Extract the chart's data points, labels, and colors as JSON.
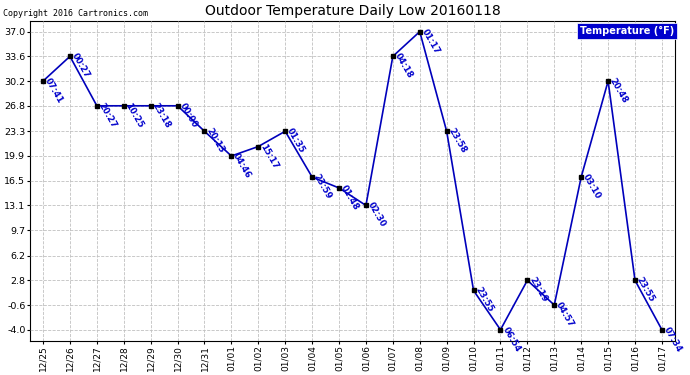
{
  "title": "Outdoor Temperature Daily Low 20160118",
  "copyright": "Copyright 2016 Cartronics.com",
  "legend_label": "Temperature (°F)",
  "x_labels": [
    "12/25",
    "12/26",
    "12/27",
    "12/28",
    "12/29",
    "12/30",
    "12/31",
    "01/01",
    "01/02",
    "01/03",
    "01/04",
    "01/05",
    "01/06",
    "01/07",
    "01/08",
    "01/09",
    "01/10",
    "01/11",
    "01/12",
    "01/13",
    "01/14",
    "01/15",
    "01/16",
    "01/17"
  ],
  "y_values": [
    30.2,
    33.6,
    26.8,
    26.8,
    26.8,
    26.8,
    23.3,
    19.9,
    21.2,
    23.3,
    17.0,
    15.5,
    13.1,
    33.6,
    37.0,
    23.3,
    1.4,
    -4.0,
    2.8,
    -0.6,
    17.0,
    30.2,
    2.8,
    -4.0
  ],
  "time_labels": [
    "07:41",
    "00:27",
    "20:27",
    "10:25",
    "23:18",
    "00:00",
    "20:13",
    "04:46",
    "15:17",
    "01:35",
    "23:59",
    "01:48",
    "02:30",
    "04:18",
    "01:17",
    "23:58",
    "23:55",
    "06:54",
    "23:19",
    "04:57",
    "03:10",
    "20:48",
    "23:55",
    "07:34"
  ],
  "y_ticks": [
    -4.0,
    -0.6,
    2.8,
    6.2,
    9.7,
    13.1,
    16.5,
    19.9,
    23.3,
    26.8,
    30.2,
    33.6,
    37.0
  ],
  "ylim_min": -5.5,
  "ylim_max": 38.5,
  "xlim_min": -0.5,
  "xlim_max": 23.5,
  "line_color": "#0000bb",
  "marker_color": "#000000",
  "label_color": "#0000cc",
  "bg_color": "#ffffff",
  "grid_color": "#c0c0c0",
  "title_color": "#000000",
  "copyright_color": "#000000",
  "legend_bg": "#0000cc",
  "legend_text_color": "#ffffff",
  "figwidth": 6.9,
  "figheight": 3.75,
  "dpi": 100
}
